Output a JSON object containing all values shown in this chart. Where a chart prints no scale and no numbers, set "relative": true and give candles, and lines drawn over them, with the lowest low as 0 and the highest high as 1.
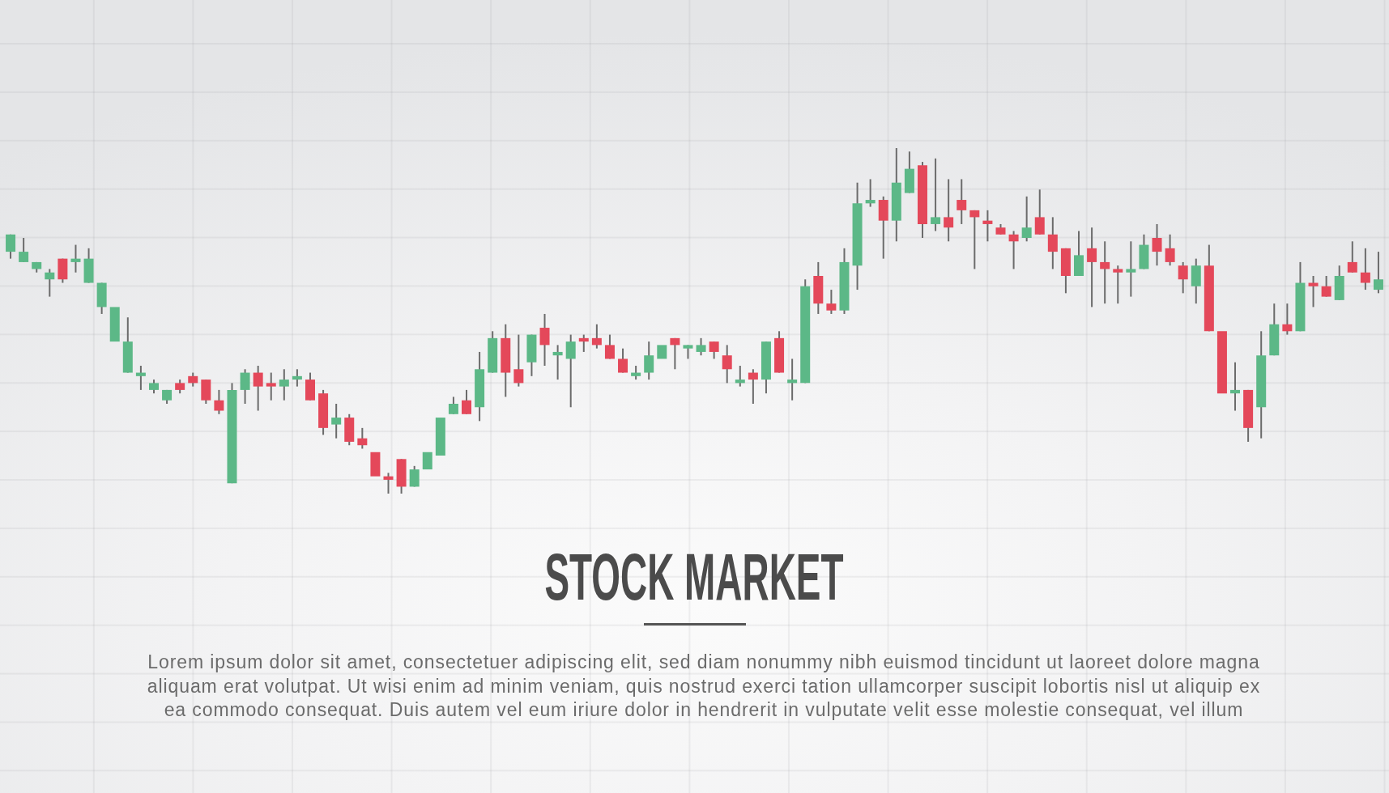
{
  "chart_data": {
    "type": "candlestick",
    "title": "STOCK MARKET",
    "subtitle": "Lorem ipsum dolor sit amet, consectetuer adipiscing elit, sed diam nonummy nibh euismod tincidunt ut laoreet dolore magna\naliquam erat volutpat. Ut wisi enim ad minim veniam, quis nostrud exerci tation ullamcorper suscipit lobortis nisl ut aliquip ex\nea commodo consequat. Duis autem vel eum iriure dolor in hendrerit in vulputate velit esse molestie consequat, vel illum",
    "relative": true,
    "tick_labels": false,
    "categories": [
      null,
      null,
      null,
      null,
      null,
      null,
      null,
      null,
      null,
      null,
      null,
      null,
      null,
      null,
      null,
      null,
      null,
      null,
      null,
      null,
      null,
      null,
      null,
      null,
      null,
      null,
      null,
      null,
      null,
      null,
      null,
      null,
      null,
      null,
      null,
      null,
      null,
      null,
      null,
      null,
      null,
      null,
      null,
      null,
      null,
      null,
      null,
      null,
      null,
      null,
      null,
      null,
      null,
      null,
      null,
      null,
      null,
      null,
      null,
      null,
      null,
      null,
      null,
      null,
      null,
      null,
      null,
      null,
      null,
      null,
      null,
      null,
      null,
      null,
      null,
      null,
      null,
      null,
      null,
      null,
      null,
      null,
      null,
      null,
      null,
      null,
      null,
      null,
      null,
      null,
      null,
      null,
      null,
      null,
      null,
      null,
      null,
      null,
      null,
      null,
      null,
      null,
      null,
      null,
      null,
      null
    ],
    "ohlc": [
      [
        0.7,
        0.75,
        0.68,
        0.75
      ],
      [
        0.67,
        0.74,
        0.67,
        0.7
      ],
      [
        0.65,
        0.67,
        0.64,
        0.67
      ],
      [
        0.62,
        0.65,
        0.57,
        0.64
      ],
      [
        0.68,
        0.68,
        0.61,
        0.62
      ],
      [
        0.67,
        0.72,
        0.64,
        0.68
      ],
      [
        0.61,
        0.71,
        0.61,
        0.68
      ],
      [
        0.54,
        0.61,
        0.52,
        0.61
      ],
      [
        0.44,
        0.54,
        0.44,
        0.54
      ],
      [
        0.35,
        0.51,
        0.35,
        0.44
      ],
      [
        0.34,
        0.37,
        0.3,
        0.35
      ],
      [
        0.3,
        0.33,
        0.29,
        0.32
      ],
      [
        0.27,
        0.3,
        0.26,
        0.3
      ],
      [
        0.32,
        0.33,
        0.29,
        0.3
      ],
      [
        0.34,
        0.35,
        0.31,
        0.32
      ],
      [
        0.33,
        0.33,
        0.26,
        0.27
      ],
      [
        0.27,
        0.3,
        0.23,
        0.24
      ],
      [
        0.03,
        0.32,
        0.03,
        0.3
      ],
      [
        0.3,
        0.36,
        0.26,
        0.35
      ],
      [
        0.35,
        0.37,
        0.24,
        0.31
      ],
      [
        0.32,
        0.35,
        0.27,
        0.31
      ],
      [
        0.31,
        0.36,
        0.27,
        0.33
      ],
      [
        0.33,
        0.36,
        0.31,
        0.34
      ],
      [
        0.33,
        0.35,
        0.27,
        0.27
      ],
      [
        0.29,
        0.3,
        0.17,
        0.19
      ],
      [
        0.2,
        0.26,
        0.16,
        0.22
      ],
      [
        0.22,
        0.23,
        0.14,
        0.15
      ],
      [
        0.16,
        0.19,
        0.13,
        0.14
      ],
      [
        0.12,
        0.12,
        0.05,
        0.05
      ],
      [
        0.05,
        0.06,
        0,
        0.04
      ],
      [
        0.1,
        0.1,
        0,
        0.02
      ],
      [
        0.02,
        0.08,
        0.02,
        0.07
      ],
      [
        0.07,
        0.12,
        0.07,
        0.12
      ],
      [
        0.11,
        0.22,
        0.11,
        0.22
      ],
      [
        0.23,
        0.28,
        0.23,
        0.26
      ],
      [
        0.27,
        0.3,
        0.23,
        0.23
      ],
      [
        0.25,
        0.41,
        0.21,
        0.36
      ],
      [
        0.35,
        0.47,
        0.35,
        0.45
      ],
      [
        0.45,
        0.49,
        0.28,
        0.35
      ],
      [
        0.36,
        0.46,
        0.31,
        0.32
      ],
      [
        0.38,
        0.46,
        0.34,
        0.46
      ],
      [
        0.48,
        0.52,
        0.37,
        0.43
      ],
      [
        0.4,
        0.43,
        0.33,
        0.41
      ],
      [
        0.39,
        0.46,
        0.25,
        0.44
      ],
      [
        0.45,
        0.46,
        0.41,
        0.44
      ],
      [
        0.45,
        0.49,
        0.42,
        0.43
      ],
      [
        0.43,
        0.46,
        0.39,
        0.39
      ],
      [
        0.39,
        0.42,
        0.35,
        0.35
      ],
      [
        0.34,
        0.37,
        0.33,
        0.35
      ],
      [
        0.35,
        0.44,
        0.33,
        0.4
      ],
      [
        0.39,
        0.43,
        0.39,
        0.43
      ],
      [
        0.45,
        0.45,
        0.36,
        0.43
      ],
      [
        0.42,
        0.43,
        0.39,
        0.43
      ],
      [
        0.41,
        0.45,
        0.4,
        0.43
      ],
      [
        0.44,
        0.44,
        0.39,
        0.41
      ],
      [
        0.4,
        0.43,
        0.32,
        0.36
      ],
      [
        0.32,
        0.37,
        0.31,
        0.33
      ],
      [
        0.35,
        0.36,
        0.26,
        0.33
      ],
      [
        0.33,
        0.44,
        0.29,
        0.44
      ],
      [
        0.45,
        0.47,
        0.35,
        0.35
      ],
      [
        0.32,
        0.39,
        0.27,
        0.33
      ],
      [
        0.32,
        0.62,
        0.32,
        0.6
      ],
      [
        0.63,
        0.67,
        0.52,
        0.55
      ],
      [
        0.55,
        0.59,
        0.52,
        0.53
      ],
      [
        0.53,
        0.71,
        0.52,
        0.67
      ],
      [
        0.66,
        0.9,
        0.59,
        0.84
      ],
      [
        0.84,
        0.91,
        0.83,
        0.85
      ],
      [
        0.85,
        0.86,
        0.68,
        0.79
      ],
      [
        0.79,
        1,
        0.73,
        0.9
      ],
      [
        0.87,
        0.99,
        0.87,
        0.94
      ],
      [
        0.95,
        0.96,
        0.74,
        0.78
      ],
      [
        0.78,
        0.97,
        0.76,
        0.8
      ],
      [
        0.8,
        0.91,
        0.73,
        0.77
      ],
      [
        0.85,
        0.91,
        0.78,
        0.82
      ],
      [
        0.82,
        0.82,
        0.65,
        0.8
      ],
      [
        0.79,
        0.82,
        0.73,
        0.78
      ],
      [
        0.77,
        0.78,
        0.75,
        0.75
      ],
      [
        0.75,
        0.76,
        0.65,
        0.73
      ],
      [
        0.74,
        0.86,
        0.73,
        0.77
      ],
      [
        0.8,
        0.88,
        0.75,
        0.75
      ],
      [
        0.75,
        0.8,
        0.65,
        0.7
      ],
      [
        0.71,
        0.71,
        0.58,
        0.63
      ],
      [
        0.63,
        0.76,
        0.63,
        0.69
      ],
      [
        0.71,
        0.77,
        0.54,
        0.67
      ],
      [
        0.67,
        0.73,
        0.55,
        0.65
      ],
      [
        0.65,
        0.66,
        0.55,
        0.64
      ],
      [
        0.64,
        0.73,
        0.57,
        0.65
      ],
      [
        0.65,
        0.75,
        0.65,
        0.72
      ],
      [
        0.74,
        0.78,
        0.66,
        0.7
      ],
      [
        0.71,
        0.75,
        0.66,
        0.67
      ],
      [
        0.66,
        0.67,
        0.58,
        0.62
      ],
      [
        0.6,
        0.68,
        0.55,
        0.66
      ],
      [
        0.66,
        0.72,
        0.47,
        0.47
      ],
      [
        0.47,
        0.47,
        0.29,
        0.29
      ],
      [
        0.29,
        0.38,
        0.24,
        0.3
      ],
      [
        0.3,
        0.3,
        0.15,
        0.19
      ],
      [
        0.25,
        0.47,
        0.16,
        0.4
      ],
      [
        0.4,
        0.55,
        0.4,
        0.49
      ],
      [
        0.49,
        0.55,
        0.46,
        0.47
      ],
      [
        0.47,
        0.67,
        0.47,
        0.61
      ],
      [
        0.61,
        0.63,
        0.54,
        0.6
      ],
      [
        0.6,
        0.63,
        0.57,
        0.57
      ],
      [
        0.56,
        0.66,
        0.56,
        0.63
      ],
      [
        0.67,
        0.73,
        0.64,
        0.64
      ],
      [
        0.64,
        0.71,
        0.59,
        0.61
      ],
      [
        0.59,
        0.7,
        0.58,
        0.62
      ]
    ],
    "colors": [
      "#5cb887",
      "#5cb887",
      "#5cb887",
      "#5cb887",
      "#e4485a",
      "#5cb887",
      "#5cb887",
      "#5cb887",
      "#5cb887",
      "#5cb887",
      "#5cb887",
      "#5cb887",
      "#5cb887",
      "#e4485a",
      "#e4485a",
      "#e4485a",
      "#e4485a",
      "#5cb887",
      "#5cb887",
      "#e4485a",
      "#e4485a",
      "#5cb887",
      "#5cb887",
      "#e4485a",
      "#e4485a",
      "#5cb887",
      "#e4485a",
      "#e4485a",
      "#e4485a",
      "#e4485a",
      "#e4485a",
      "#5cb887",
      "#5cb887",
      "#5cb887",
      "#5cb887",
      "#e4485a",
      "#5cb887",
      "#5cb887",
      "#e4485a",
      "#e4485a",
      "#5cb887",
      "#e4485a",
      "#5cb887",
      "#5cb887",
      "#e4485a",
      "#e4485a",
      "#e4485a",
      "#e4485a",
      "#5cb887",
      "#5cb887",
      "#5cb887",
      "#e4485a",
      "#5cb887",
      "#5cb887",
      "#e4485a",
      "#e4485a",
      "#5cb887",
      "#e4485a",
      "#5cb887",
      "#e4485a",
      "#5cb887",
      "#5cb887",
      "#e4485a",
      "#e4485a",
      "#5cb887",
      "#5cb887",
      "#5cb887",
      "#e4485a",
      "#5cb887",
      "#5cb887",
      "#e4485a",
      "#5cb887",
      "#e4485a",
      "#e4485a",
      "#e4485a",
      "#e4485a",
      "#e4485a",
      "#e4485a",
      "#5cb887",
      "#e4485a",
      "#e4485a",
      "#e4485a",
      "#5cb887",
      "#e4485a",
      "#e4485a",
      "#e4485a",
      "#5cb887",
      "#5cb887",
      "#e4485a",
      "#e4485a",
      "#e4485a",
      "#5cb887",
      "#e4485a",
      "#e4485a",
      "#5cb887",
      "#e4485a",
      "#5cb887",
      "#5cb887",
      "#e4485a",
      "#5cb887",
      "#e4485a",
      "#e4485a",
      "#5cb887",
      "#e4485a",
      "#e4485a",
      "#5cb887"
    ]
  }
}
